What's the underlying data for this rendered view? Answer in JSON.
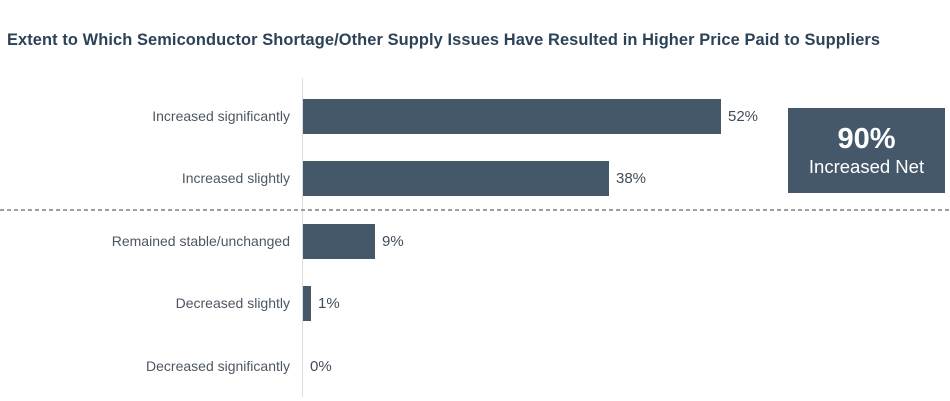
{
  "chart_data": {
    "type": "bar",
    "orientation": "horizontal",
    "title": "Extent to Which Semiconductor Shortage/Other Supply Issues Have Resulted in Higher Price Paid to Suppliers",
    "categories": [
      "Increased significantly",
      "Increased slightly",
      "Remained stable/unchanged",
      "Decreased slightly",
      "Decreased significantly"
    ],
    "values": [
      52,
      38,
      9,
      1,
      0
    ],
    "value_labels": [
      "52%",
      "38%",
      "9%",
      "1%",
      "0%"
    ],
    "xlabel": "",
    "ylabel": "",
    "xlim": [
      0,
      60
    ],
    "grid": false,
    "legend": false,
    "separator_after_index": 1,
    "annotation": {
      "value": "90%",
      "label": "Increased Net"
    }
  },
  "colors": {
    "bar": "#44586A",
    "net_box_bg": "#44586A",
    "net_box_text": "#FFFFFF",
    "title_text": "#2C4257",
    "category_text": "#4D5761",
    "value_text": "#424C58",
    "axis_line": "#DBDEE0",
    "separator": "#9AA1A8",
    "background": "#FFFFFF"
  }
}
